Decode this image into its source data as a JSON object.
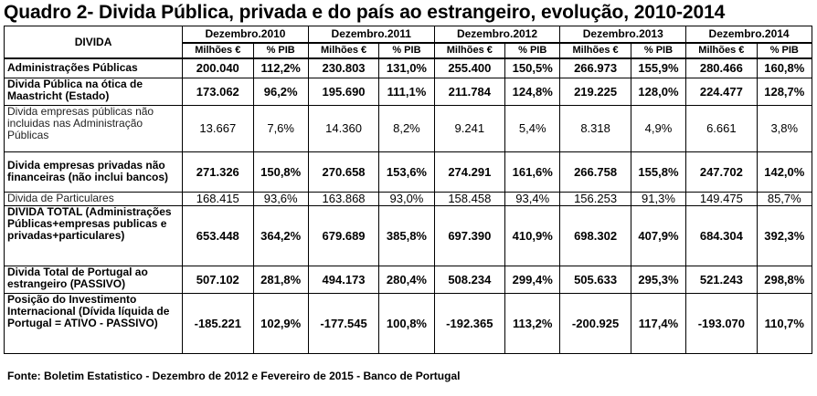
{
  "title": "Quadro 2- Divida Pública, privada e do país ao estrangeiro, evolução, 2010-2014",
  "table": {
    "corner": "DIVIDA",
    "years": [
      "Dezembro.2010",
      "Dezembro.2011",
      "Dezembro.2012",
      "Dezembro.2013",
      "Dezembro.2014"
    ],
    "sub_value": "Milhões €",
    "sub_pct": "% PIB",
    "rows": [
      {
        "label": "Administrações Públicas",
        "cells": [
          "200.040",
          "112,2%",
          "230.803",
          "131,0%",
          "255.400",
          "150,5%",
          "266.973",
          "155,9%",
          "280.466",
          "160,8%"
        ]
      },
      {
        "label": "Divida Pública na ótica de Maastricht  (Estado)",
        "cells": [
          "173.062",
          "96,2%",
          "195.690",
          "111,1%",
          "211.784",
          "124,8%",
          "219.225",
          "128,0%",
          "224.477",
          "128,7%"
        ]
      },
      {
        "label": "Divida empresas públicas não incluidas nas Administração Públicas",
        "cells": [
          "13.667",
          "7,6%",
          "14.360",
          "8,2%",
          "9.241",
          "5,4%",
          "8.318",
          "4,9%",
          "6.661",
          "3,8%"
        ]
      },
      {
        "label": "Divida empresas privadas não financeiras (não inclui bancos)",
        "cells": [
          "271.326",
          "150,8%",
          "270.658",
          "153,6%",
          "274.291",
          "161,6%",
          "266.758",
          "155,8%",
          "247.702",
          "142,0%"
        ]
      },
      {
        "label": "Divida de Particulares",
        "cells": [
          "168.415",
          "93,6%",
          "163.868",
          "93,0%",
          "158.458",
          "93,4%",
          "156.253",
          "91,3%",
          "149.475",
          "85,7%"
        ]
      },
      {
        "label": "DIVIDA TOTAL (Administrações Públicas+empresas publicas e privadas+particulares)",
        "cells": [
          "653.448",
          "364,2%",
          "679.689",
          "385,8%",
          "697.390",
          "410,9%",
          "698.302",
          "407,9%",
          "684.304",
          "392,3%"
        ]
      },
      {
        "label": "Divida Total de Portugal ao estrangeiro (PASSIVO)",
        "cells": [
          "507.102",
          "281,8%",
          "494.173",
          "280,4%",
          "508.234",
          "299,4%",
          "505.633",
          "295,3%",
          "521.243",
          "298,8%"
        ]
      },
      {
        "label": "Posição do Investimento Internacional (Dívida líquida de Portugal = ATIVO - PASSIVO)",
        "cells": [
          "-185.221",
          "102,9%",
          "-177.545",
          "100,8%",
          "-192.365",
          "113,2%",
          "-200.925",
          "117,4%",
          "-193.070",
          "110,7%"
        ]
      }
    ]
  },
  "footer": "Fonte:  Boletim Estatistico - Dezembro de 2012 e Fevereiro de 2015 - Banco de Portugal"
}
